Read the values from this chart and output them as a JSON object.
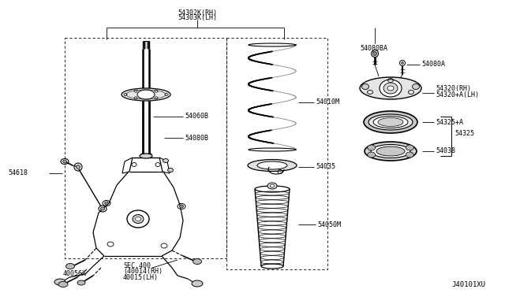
{
  "bg_color": "#ffffff",
  "watermark": "J40101XU",
  "labels": {
    "54302K_RH": "54302K(RH)",
    "54303K_LH": "54303K(LH)",
    "54060B": "54060B",
    "54080B": "54080B",
    "54618": "54618",
    "40056X": "40056X",
    "SEC400": "SEC.400",
    "40014_RH": "(40014(RH)",
    "40015_LH": "40015(LH)",
    "54010M": "54010M",
    "54035": "54035",
    "54050M": "54050M",
    "54080BA": "54080BA",
    "54080A": "54080A",
    "54320_RH": "54320(RH)",
    "54320A_LH": "54320+A(LH)",
    "54325A": "54325+A",
    "54325": "54325",
    "54038": "54038"
  },
  "font_size": 6.0
}
